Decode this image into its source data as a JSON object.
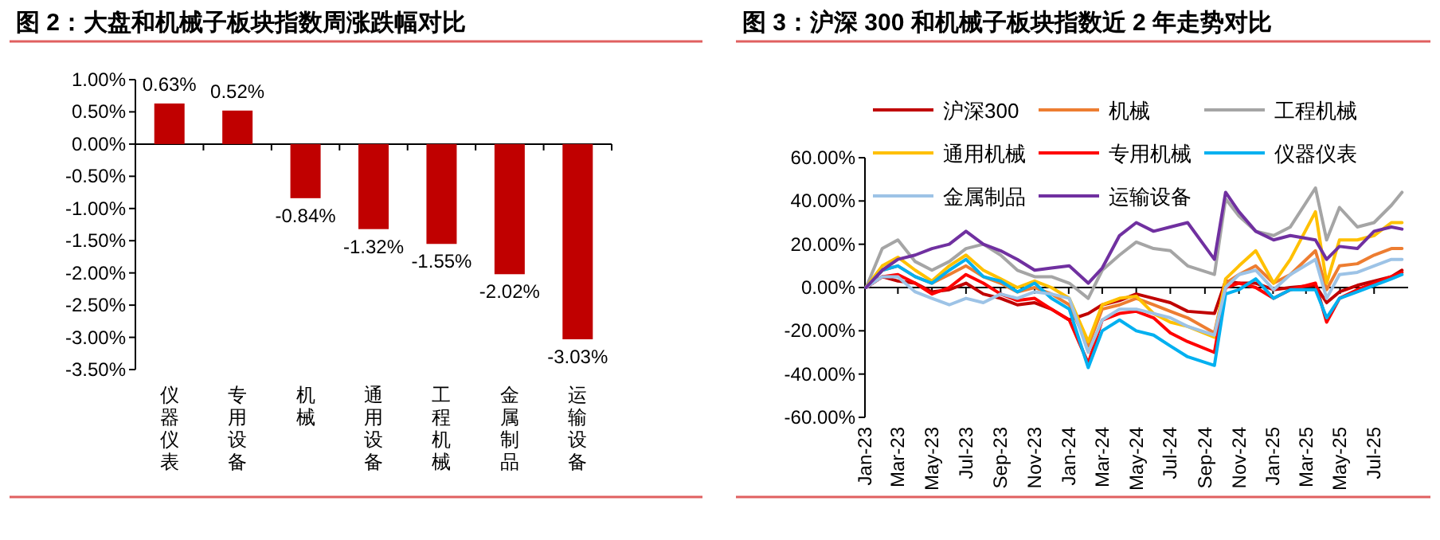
{
  "chart_data": [
    {
      "type": "bar",
      "title": "图 2：大盘和机械子板块指数周涨跌幅对比",
      "categories": [
        "仪器仪表",
        "专用设备",
        "机械",
        "通用设备",
        "工程机械",
        "金属制品",
        "运输设备"
      ],
      "values": [
        0.63,
        0.52,
        -0.84,
        -1.32,
        -1.55,
        -2.02,
        -3.03
      ],
      "value_labels": [
        "0.63%",
        "0.52%",
        "-0.84%",
        "-1.32%",
        "-1.55%",
        "-2.02%",
        "-3.03%"
      ],
      "color": "#c00000",
      "ylim": [
        -3.5,
        1
      ],
      "yticks": [
        {
          "value": 1,
          "label": "1.00%"
        },
        {
          "value": 0.5,
          "label": "0.50%"
        },
        {
          "value": 0,
          "label": "0.00%"
        },
        {
          "value": -0.5,
          "label": "-0.50%"
        },
        {
          "value": -1,
          "label": "-1.00%"
        },
        {
          "value": -1.5,
          "label": "-1.50%"
        },
        {
          "value": -2,
          "label": "-2.00%"
        },
        {
          "value": -2.5,
          "label": "-2.50%"
        },
        {
          "value": -3,
          "label": "-3.00%"
        },
        {
          "value": -3.5,
          "label": "-3.50%"
        }
      ]
    },
    {
      "type": "line",
      "title": "图 3：沪深 300 和机械子板块指数近 2 年走势对比",
      "x": [
        "2023-01-03",
        "2023-02-01",
        "2023-03-01",
        "2023-04-01",
        "2023-05-01",
        "2023-06-01",
        "2023-07-01",
        "2023-08-01",
        "2023-09-01",
        "2023-10-01",
        "2023-11-01",
        "2023-12-01",
        "2024-01-02",
        "2024-02-05",
        "2024-03-01",
        "2024-04-01",
        "2024-05-01",
        "2024-06-01",
        "2024-07-01",
        "2024-08-01",
        "2024-09-18",
        "2024-10-08",
        "2024-11-01",
        "2024-12-01",
        "2025-01-02",
        "2025-02-01",
        "2025-03-18",
        "2025-04-07",
        "2025-04-30",
        "2025-06-01",
        "2025-07-01",
        "2025-08-01",
        "2025-08-20"
      ],
      "series": [
        {
          "name": "沪深300",
          "color": "#c00000",
          "values": [
            0,
            5,
            3,
            2,
            -2,
            -1,
            2,
            -3,
            -5,
            -8,
            -7,
            -10,
            -15,
            -12,
            -8,
            -6,
            -3,
            -5,
            -7,
            -11,
            -12,
            3,
            2,
            2,
            -1,
            0,
            1,
            -7,
            -2,
            1,
            3,
            5,
            8
          ]
        },
        {
          "name": "机械",
          "color": "#ed7d31",
          "values": [
            0,
            8,
            10,
            5,
            2,
            6,
            10,
            5,
            2,
            -2,
            0,
            -3,
            -8,
            -27,
            -10,
            -8,
            -5,
            -8,
            -11,
            -14,
            -21,
            2,
            6,
            10,
            2,
            6,
            17,
            -1,
            10,
            11,
            15,
            18,
            18
          ]
        },
        {
          "name": "工程机械",
          "color": "#a5a5a5",
          "values": [
            0,
            18,
            22,
            12,
            8,
            12,
            18,
            20,
            15,
            8,
            5,
            5,
            2,
            -5,
            8,
            15,
            21,
            18,
            17,
            10,
            6,
            41,
            33,
            26,
            24,
            28,
            46,
            22,
            37,
            28,
            30,
            38,
            44
          ]
        },
        {
          "name": "通用机械",
          "color": "#ffc000",
          "values": [
            0,
            10,
            14,
            8,
            3,
            10,
            15,
            8,
            4,
            0,
            3,
            0,
            -5,
            -25,
            -8,
            -5,
            -4,
            -12,
            -16,
            -18,
            -23,
            4,
            10,
            17,
            2,
            13,
            35,
            2,
            22,
            22,
            24,
            30,
            30
          ]
        },
        {
          "name": "专用机械",
          "color": "#ff0000",
          "values": [
            0,
            5,
            6,
            2,
            -3,
            0,
            6,
            2,
            -3,
            -6,
            -5,
            -10,
            -15,
            -35,
            -15,
            -12,
            -11,
            -14,
            -21,
            -25,
            -30,
            0,
            2,
            0,
            -5,
            -1,
            2,
            -16,
            -5,
            -1,
            2,
            5,
            7
          ]
        },
        {
          "name": "仪器仪表",
          "color": "#00b0f0",
          "values": [
            0,
            8,
            10,
            5,
            2,
            8,
            13,
            5,
            3,
            -2,
            2,
            -5,
            -10,
            -37,
            -20,
            -15,
            -20,
            -22,
            -27,
            -32,
            -36,
            -3,
            -1,
            4,
            -5,
            -1,
            -1,
            -14,
            -5,
            -2,
            1,
            4,
            6
          ]
        },
        {
          "name": "金属制品",
          "color": "#9dc3e6",
          "values": [
            0,
            5,
            5,
            -2,
            -5,
            -8,
            -5,
            -7,
            -3,
            -5,
            -2,
            -3,
            -5,
            -30,
            -15,
            -10,
            -10,
            -12,
            -14,
            -18,
            -22,
            0,
            6,
            8,
            -1,
            6,
            13,
            -5,
            6,
            7,
            10,
            13,
            13
          ]
        },
        {
          "name": "运输设备",
          "color": "#7030a0",
          "values": [
            0,
            8,
            13,
            15,
            18,
            20,
            26,
            20,
            17,
            13,
            8,
            9,
            10,
            2,
            9,
            24,
            30,
            26,
            28,
            30,
            13,
            44,
            35,
            26,
            22,
            24,
            22,
            13,
            19,
            18,
            26,
            28,
            27
          ]
        }
      ],
      "xlim": [
        "2023-01-01",
        "2025-08-31"
      ],
      "xticks": [
        {
          "value": "2023-01-01",
          "label": "Jan-23"
        },
        {
          "value": "2023-03-01",
          "label": "Mar-23"
        },
        {
          "value": "2023-05-01",
          "label": "May-23"
        },
        {
          "value": "2023-07-01",
          "label": "Jul-23"
        },
        {
          "value": "2023-09-01",
          "label": "Sep-23"
        },
        {
          "value": "2023-11-01",
          "label": "Nov-23"
        },
        {
          "value": "2024-01-01",
          "label": "Jan-24"
        },
        {
          "value": "2024-03-01",
          "label": "Mar-24"
        },
        {
          "value": "2024-05-01",
          "label": "May-24"
        },
        {
          "value": "2024-07-01",
          "label": "Jul-24"
        },
        {
          "value": "2024-09-01",
          "label": "Sep-24"
        },
        {
          "value": "2024-11-01",
          "label": "Nov-24"
        },
        {
          "value": "2025-01-01",
          "label": "Jan-25"
        },
        {
          "value": "2025-03-01",
          "label": "Mar-25"
        },
        {
          "value": "2025-05-01",
          "label": "May-25"
        },
        {
          "value": "2025-07-01",
          "label": "Jul-25"
        }
      ],
      "ylim": [
        -60,
        60
      ],
      "yticks": [
        {
          "value": 60,
          "label": "60.00%"
        },
        {
          "value": 40,
          "label": "40.00%"
        },
        {
          "value": 20,
          "label": "20.00%"
        },
        {
          "value": 0,
          "label": "0.00%"
        },
        {
          "value": -20,
          "label": "-20.00%"
        },
        {
          "value": -40,
          "label": "-40.00%"
        },
        {
          "value": -60,
          "label": "-60.00%"
        }
      ],
      "legend": "top left"
    }
  ]
}
